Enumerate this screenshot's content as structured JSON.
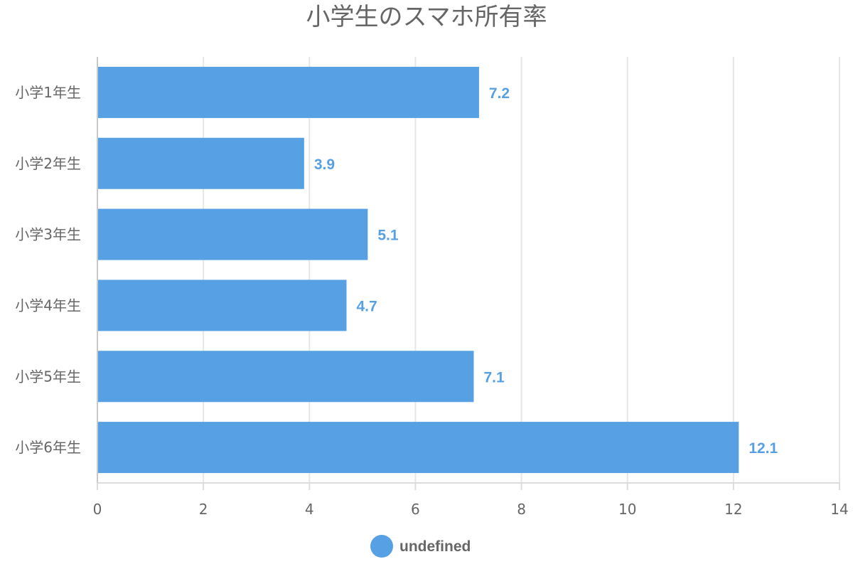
{
  "chart_data": {
    "type": "bar",
    "orientation": "horizontal",
    "title": "小学生のスマホ所有率",
    "categories": [
      "小学1年生",
      "小学2年生",
      "小学3年生",
      "小学4年生",
      "小学5年生",
      "小学6年生"
    ],
    "series": [
      {
        "name": "undefined",
        "values": [
          7.2,
          3.9,
          5.1,
          4.7,
          7.1,
          12.1
        ],
        "color": "#56a0e3"
      }
    ],
    "xlim": [
      0,
      14
    ],
    "xticks": [
      0,
      2,
      4,
      6,
      8,
      10,
      12,
      14
    ],
    "grid": true,
    "legend_position": "bottom",
    "data_labels": true
  }
}
